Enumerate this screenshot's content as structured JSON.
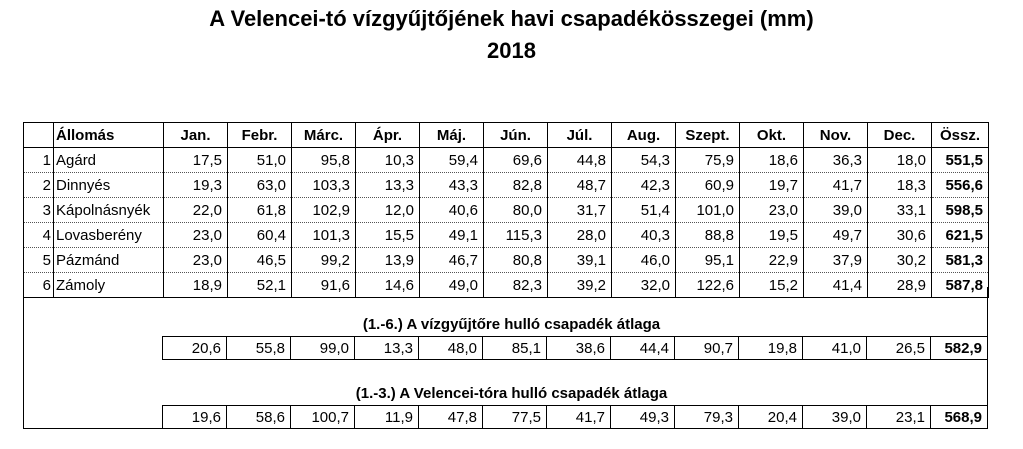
{
  "title": "A  Velencei-tó  vízgyűjtőjének  havi  csapadékösszegei (mm)",
  "year": "2018",
  "headers": [
    "",
    "Állomás",
    "Jan.",
    "Febr.",
    "Márc.",
    "Ápr.",
    "Máj.",
    "Jún.",
    "Júl.",
    "Aug.",
    "Szept.",
    "Okt.",
    "Nov.",
    "Dec.",
    "Össz."
  ],
  "rows": [
    [
      "1",
      "Agárd",
      "17,5",
      "51,0",
      "95,8",
      "10,3",
      "59,4",
      "69,6",
      "44,8",
      "54,3",
      "75,9",
      "18,6",
      "36,3",
      "18,0",
      "551,5"
    ],
    [
      "2",
      "Dinnyés",
      "19,3",
      "63,0",
      "103,3",
      "13,3",
      "43,3",
      "82,8",
      "48,7",
      "42,3",
      "60,9",
      "19,7",
      "41,7",
      "18,3",
      "556,6"
    ],
    [
      "3",
      "Kápolnásnyék",
      "22,0",
      "61,8",
      "102,9",
      "12,0",
      "40,6",
      "80,0",
      "31,7",
      "51,4",
      "101,0",
      "23,0",
      "39,0",
      "33,1",
      "598,5"
    ],
    [
      "4",
      "Lovasberény",
      "23,0",
      "60,4",
      "101,3",
      "15,5",
      "49,1",
      "115,3",
      "28,0",
      "40,3",
      "88,8",
      "19,5",
      "49,7",
      "30,6",
      "621,5"
    ],
    [
      "5",
      "Pázmánd",
      "23,0",
      "46,5",
      "99,2",
      "13,9",
      "46,7",
      "80,8",
      "39,1",
      "46,0",
      "95,1",
      "22,9",
      "37,9",
      "30,2",
      "581,3"
    ],
    [
      "6",
      "Zámoly",
      "18,9",
      "52,1",
      "91,6",
      "14,6",
      "49,0",
      "82,3",
      "39,2",
      "32,0",
      "122,6",
      "15,2",
      "41,4",
      "28,9",
      "587,8"
    ]
  ],
  "average1": {
    "label": "(1.-6.) A vízgyűjtőre hulló csapadék átlaga",
    "values": [
      "20,6",
      "55,8",
      "99,0",
      "13,3",
      "48,0",
      "85,1",
      "38,6",
      "44,4",
      "90,7",
      "19,8",
      "41,0",
      "26,5",
      "582,9"
    ]
  },
  "average2": {
    "label": "(1.-3.) A  Velencei-tóra hulló csapadék átlaga",
    "values": [
      "19,6",
      "58,6",
      "100,7",
      "11,9",
      "47,8",
      "77,5",
      "41,7",
      "49,3",
      "79,3",
      "20,4",
      "39,0",
      "23,1",
      "568,9"
    ]
  }
}
